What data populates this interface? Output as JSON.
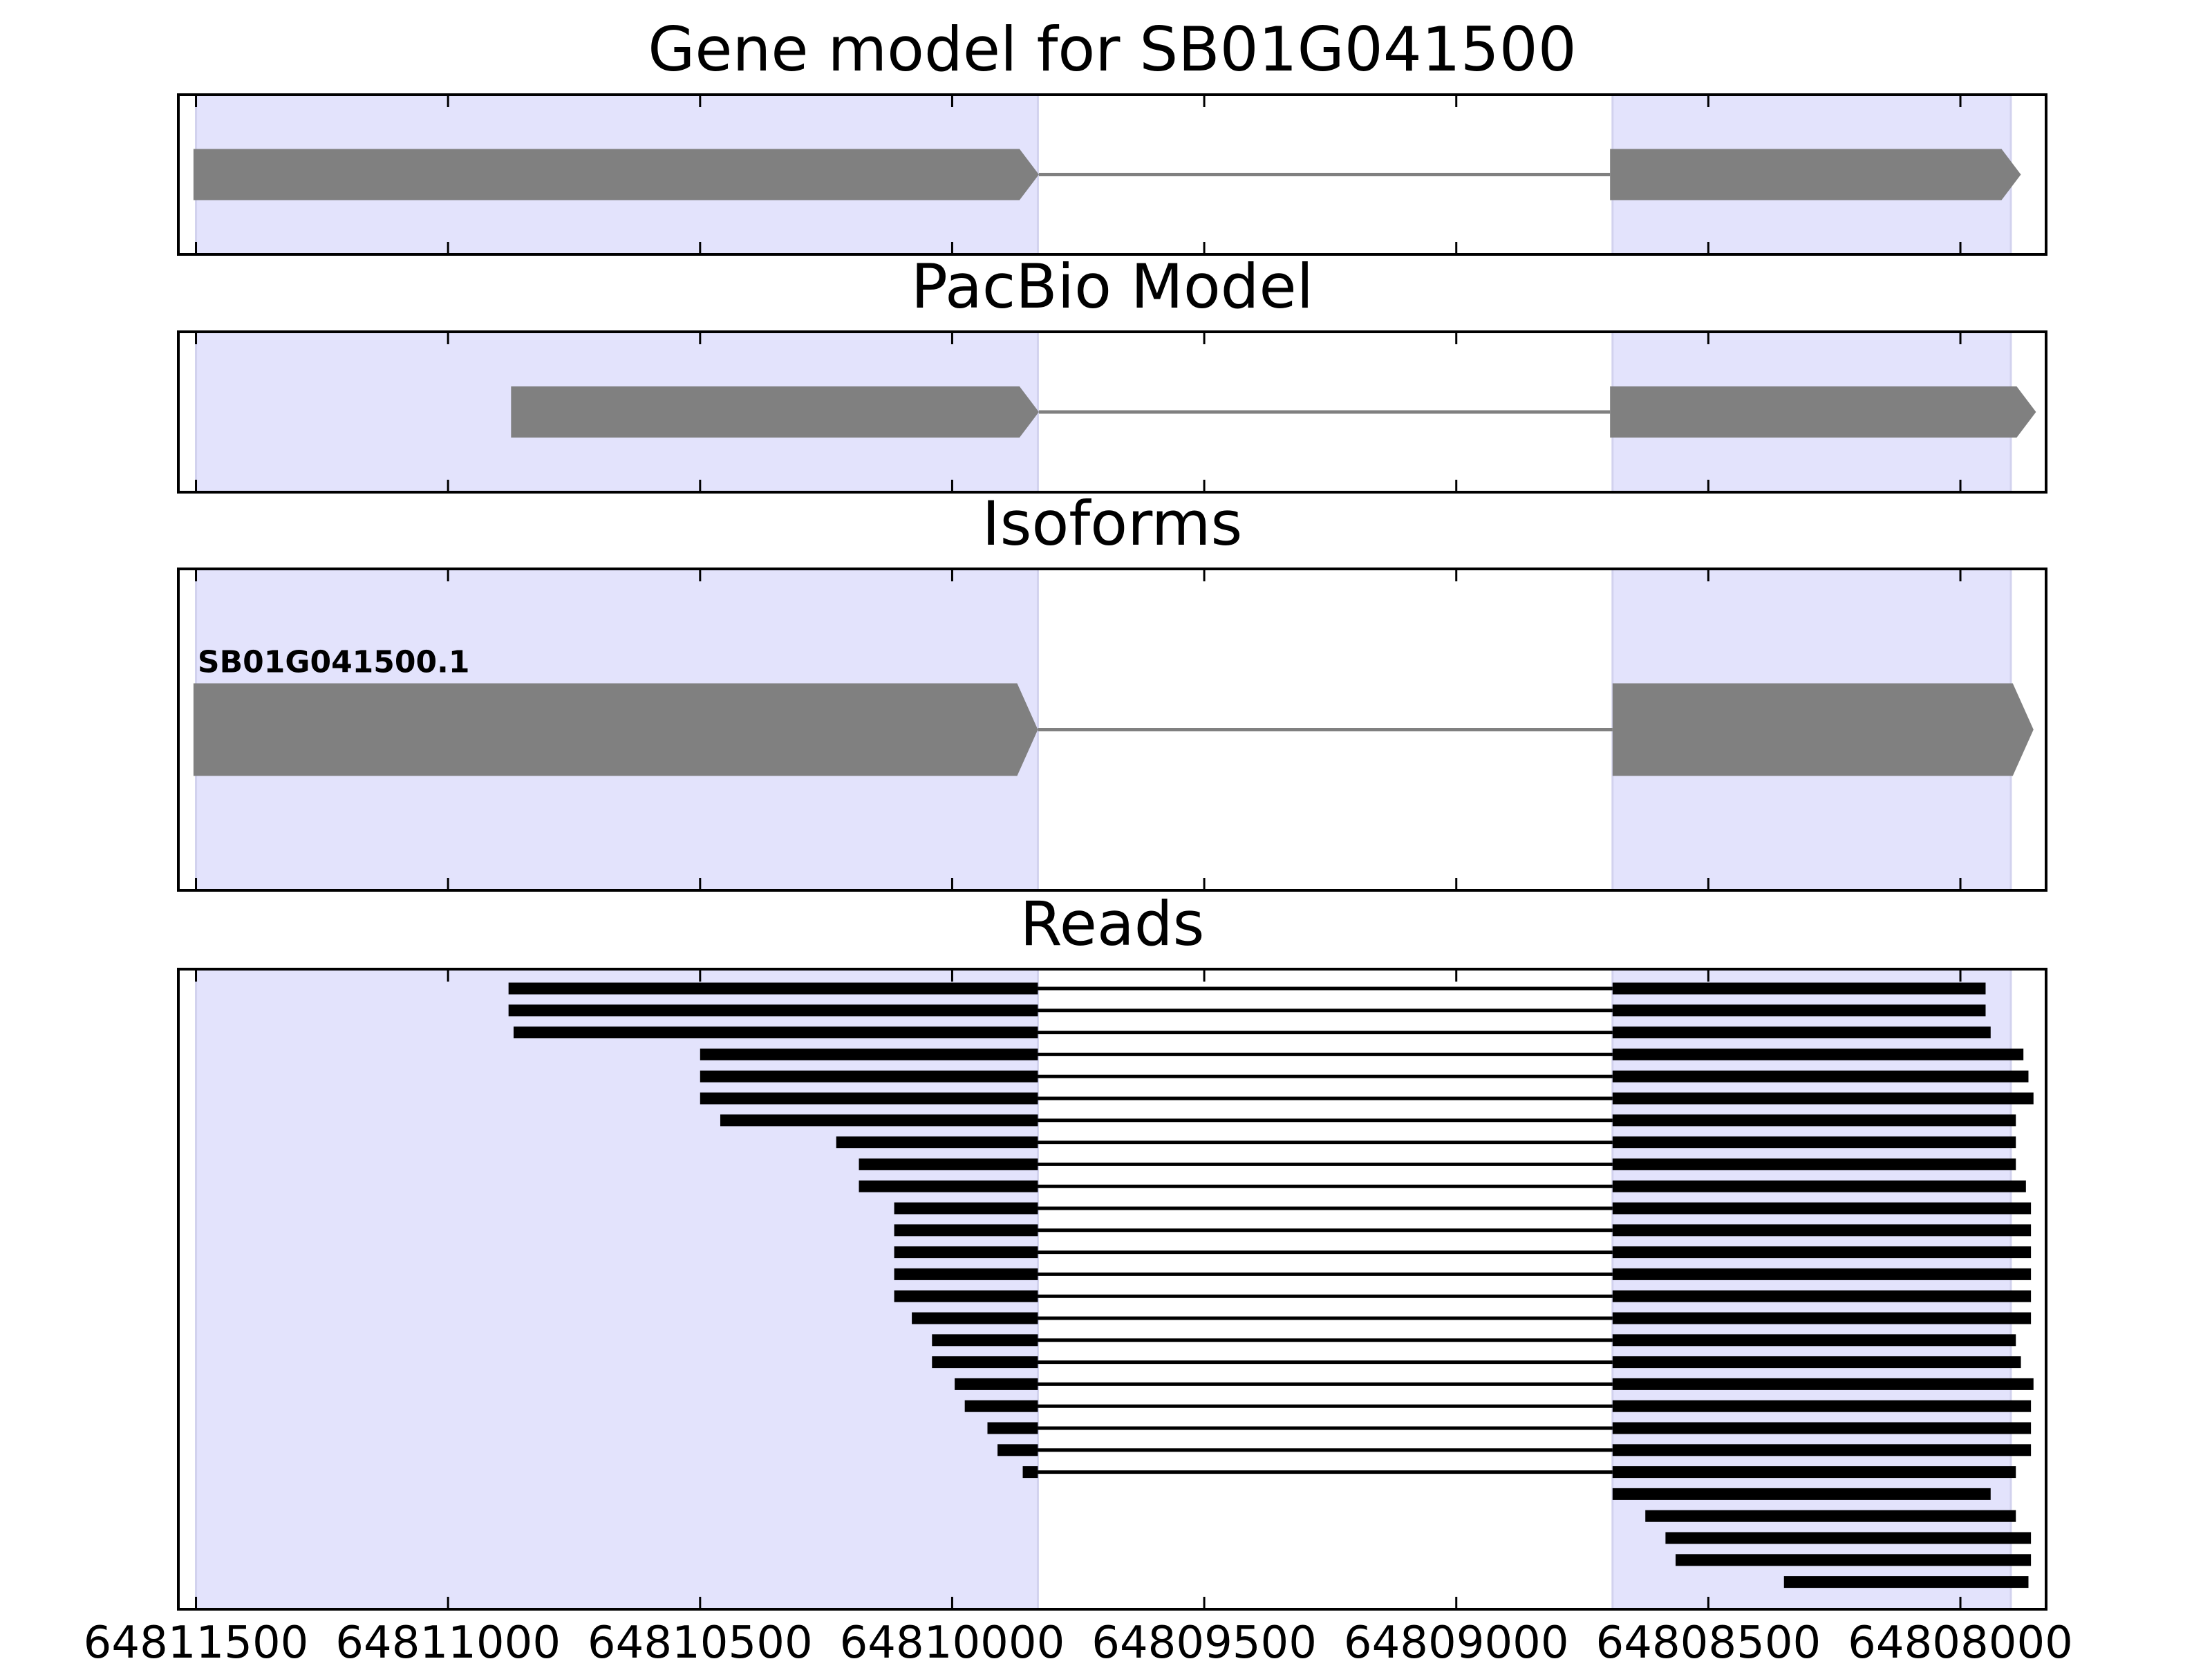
{
  "chart_data": {
    "type": "gene-structure",
    "x_axis": {
      "reversed": true,
      "lim": [
        64811535,
        64807830
      ],
      "ticks": [
        64811500,
        64811000,
        64810500,
        64810000,
        64809500,
        64809000,
        64808500,
        64808000
      ],
      "tick_labels": [
        "64811500",
        "64811000",
        "64810500",
        "64810000",
        "64809500",
        "64809000",
        "64808500",
        "64808000"
      ]
    },
    "exon_regions": [
      {
        "start": 64811500,
        "end": 64809830
      },
      {
        "start": 64808690,
        "end": 64807900
      }
    ],
    "panels": [
      {
        "key": "gene",
        "title": "Gene model for SB01G041500",
        "features": [
          {
            "start": 64811505,
            "end": 64809828,
            "exons": [
              [
                64811505,
                64809828
              ],
              [
                64808695,
                64807880
              ]
            ]
          }
        ]
      },
      {
        "key": "pacbio",
        "title": "PacBio Model",
        "features": [
          {
            "start": 64810875,
            "end": 64809828,
            "exons": [
              [
                64810875,
                64809828
              ],
              [
                64808695,
                64807850
              ]
            ]
          }
        ]
      },
      {
        "key": "isoforms",
        "title": "Isoforms",
        "features": [
          {
            "label": "SB01G041500.1",
            "start": 64811505,
            "end": 64809830,
            "exons": [
              [
                64811505,
                64809830
              ],
              [
                64808690,
                64807855
              ]
            ]
          }
        ]
      },
      {
        "key": "reads",
        "title": "Reads",
        "features": [
          {
            "exons": [
              [
                64810880,
                64809830
              ],
              [
                64808690,
                64807950
              ]
            ]
          },
          {
            "exons": [
              [
                64810880,
                64809830
              ],
              [
                64808690,
                64807950
              ]
            ]
          },
          {
            "exons": [
              [
                64810870,
                64809830
              ],
              [
                64808690,
                64807940
              ]
            ]
          },
          {
            "exons": [
              [
                64810500,
                64809830
              ],
              [
                64808690,
                64807875
              ]
            ]
          },
          {
            "exons": [
              [
                64810500,
                64809830
              ],
              [
                64808690,
                64807865
              ]
            ]
          },
          {
            "exons": [
              [
                64810500,
                64809830
              ],
              [
                64808690,
                64807855
              ]
            ]
          },
          {
            "exons": [
              [
                64810460,
                64809830
              ],
              [
                64808690,
                64807890
              ]
            ]
          },
          {
            "exons": [
              [
                64810230,
                64809830
              ],
              [
                64808690,
                64807890
              ]
            ]
          },
          {
            "exons": [
              [
                64810185,
                64809830
              ],
              [
                64808690,
                64807890
              ]
            ]
          },
          {
            "exons": [
              [
                64810185,
                64809830
              ],
              [
                64808690,
                64807870
              ]
            ]
          },
          {
            "exons": [
              [
                64810115,
                64809830
              ],
              [
                64808690,
                64807860
              ]
            ]
          },
          {
            "exons": [
              [
                64810115,
                64809830
              ],
              [
                64808690,
                64807860
              ]
            ]
          },
          {
            "exons": [
              [
                64810115,
                64809830
              ],
              [
                64808690,
                64807860
              ]
            ]
          },
          {
            "exons": [
              [
                64810115,
                64809830
              ],
              [
                64808690,
                64807860
              ]
            ]
          },
          {
            "exons": [
              [
                64810115,
                64809830
              ],
              [
                64808690,
                64807860
              ]
            ]
          },
          {
            "exons": [
              [
                64810080,
                64809830
              ],
              [
                64808690,
                64807860
              ]
            ]
          },
          {
            "exons": [
              [
                64810040,
                64809830
              ],
              [
                64808690,
                64807890
              ]
            ]
          },
          {
            "exons": [
              [
                64810040,
                64809830
              ],
              [
                64808690,
                64807880
              ]
            ]
          },
          {
            "exons": [
              [
                64809995,
                64809830
              ],
              [
                64808690,
                64807855
              ]
            ]
          },
          {
            "exons": [
              [
                64809975,
                64809830
              ],
              [
                64808690,
                64807860
              ]
            ]
          },
          {
            "exons": [
              [
                64809930,
                64809830
              ],
              [
                64808690,
                64807860
              ]
            ]
          },
          {
            "exons": [
              [
                64809910,
                64809830
              ],
              [
                64808690,
                64807860
              ]
            ]
          },
          {
            "exons": [
              [
                64809860,
                64809830
              ],
              [
                64808690,
                64807890
              ]
            ]
          },
          {
            "exons": [
              [
                64808690,
                64807940
              ]
            ]
          },
          {
            "exons": [
              [
                64808625,
                64807890
              ]
            ]
          },
          {
            "exons": [
              [
                64808585,
                64807860
              ]
            ]
          },
          {
            "exons": [
              [
                64808565,
                64807860
              ]
            ]
          },
          {
            "exons": [
              [
                64808350,
                64807865
              ]
            ]
          }
        ]
      }
    ]
  }
}
